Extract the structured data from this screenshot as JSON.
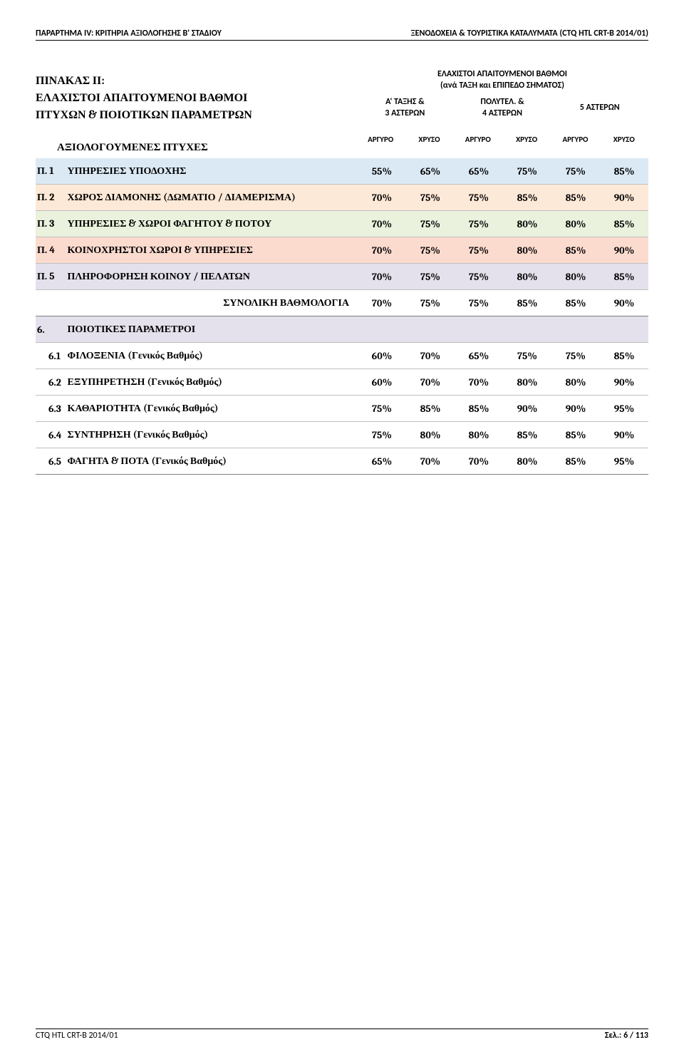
{
  "header": {
    "left": "ΠΑΡΑΡΤΗΜΑ IV: ΚΡΙΤΗΡΙΑ ΑΞΙΟΛΟΓΗΣΗΣ Β' ΣΤΑΔΙΟΥ",
    "right": "ΞΕΝΟΔΟΧΕΙΑ & ΤΟΥΡΙΣΤΙΚΑ ΚΑΤΑΛΥΜΑΤΑ (CTQ HTL CRT-B 2014/01)"
  },
  "title": {
    "line1": "ΠΙΝΑΚΑΣ ΙΙ:",
    "line2": "ΕΛΑΧΙΣΤΟΙ ΑΠΑΙΤΟΥΜΕΝΟΙ ΒΑΘΜΟΙ",
    "line3": "ΠΤΥΧΩΝ & ΠΟΙΟΤΙΚΩΝ ΠΑΡΑΜΕΤΡΩΝ",
    "banner_line1": "ΕΛΑΧΙΣΤΟΙ ΑΠΑΙΤΟΥΜΕΝΟΙ ΒΑΘΜΟΙ",
    "banner_line2": "(ανά ΤΑΞΗ και ΕΠΙΠΕΔΟ ΣΗΜΑΤΟΣ)"
  },
  "categories": {
    "cat1_line1": "Α' ΤΑΞΗΣ &",
    "cat1_line2": "3 ΑΣΤΕΡΩΝ",
    "cat2_line1": "ΠΟΛΥΤΕΛ. &",
    "cat2_line2": "4 ΑΣΤΕΡΩΝ",
    "cat3_line1": "5 ΑΣΤΕΡΩΝ",
    "sub1": "ΑΡΓΥΡΟ",
    "sub2": "ΧΡΥΣΟ",
    "sub3": "ΑΡΓΥΡΟ",
    "sub4": "ΧΡΥΣΟ",
    "sub5": "ΑΡΓΥΡΟ",
    "sub6": "ΧΡΥΣΟ"
  },
  "section_label": "ΑΞΙΟΛΟΓΟΥΜΕΝΕΣ  ΠΤΥΧΕΣ",
  "rows": [
    {
      "code": "Π. 1",
      "label": "ΥΠΗΡΕΣΙΕΣ ΥΠΟΔΟΧΗΣ",
      "bg": "#dbe9f4",
      "v": [
        "55%",
        "65%",
        "65%",
        "75%",
        "75%",
        "85%"
      ]
    },
    {
      "code": "Π. 2",
      "label": "ΧΩΡΟΣ ΔΙΑΜΟΝΗΣ (ΔΩΜΑΤΙΟ / ΔΙΑΜΕΡΙΣΜΑ)",
      "bg": "#fde9d8",
      "v": [
        "70%",
        "75%",
        "75%",
        "85%",
        "85%",
        "90%"
      ]
    },
    {
      "code": "Π. 3",
      "label": "ΥΠΗΡΕΣΙΕΣ & ΧΩΡΟΙ ΦΑΓΗΤΟΥ & ΠΟΤΟΥ",
      "bg": "#eaf1dc",
      "v": [
        "70%",
        "75%",
        "75%",
        "80%",
        "80%",
        "85%"
      ]
    },
    {
      "code": "Π. 4",
      "label": "ΚΟΙΝΟΧΡΗΣΤΟΙ ΧΩΡΟΙ & ΥΠΗΡΕΣΙΕΣ",
      "bg": "#fcdbcf",
      "v": [
        "70%",
        "75%",
        "75%",
        "80%",
        "85%",
        "90%"
      ]
    },
    {
      "code": "Π. 5",
      "label": "ΠΛΗΡΟΦΟΡΗΣΗ ΚΟΙΝΟΥ / ΠΕΛΑΤΩΝ",
      "bg": "#e4e1ec",
      "v": [
        "70%",
        "75%",
        "75%",
        "80%",
        "80%",
        "85%"
      ]
    }
  ],
  "synolik": {
    "label": "ΣΥΝΟΛΙΚΗ ΒΑΘΜΟΛΟΓΙΑ",
    "v": [
      "70%",
      "75%",
      "75%",
      "85%",
      "85%",
      "90%"
    ]
  },
  "quality_header": {
    "code": "6.",
    "label": "ΠΟΙΟΤΙΚΕΣ ΠΑΡΑΜΕΤΡΟΙ",
    "bg": "#e4e1ec"
  },
  "quality_rows": [
    {
      "code": "6.1",
      "label": "ΦΙΛΟΞΕΝΙΑ (Γενικός Βαθμός)",
      "v": [
        "60%",
        "70%",
        "65%",
        "75%",
        "75%",
        "85%"
      ]
    },
    {
      "code": "6.2",
      "label": "ΕΞΥΠΗΡΕΤΗΣΗ (Γενικός Βαθμός)",
      "v": [
        "60%",
        "70%",
        "70%",
        "80%",
        "80%",
        "90%"
      ]
    },
    {
      "code": "6.3",
      "label": "ΚΑΘΑΡΙΟΤΗΤΑ (Γενικός Βαθμός)",
      "v": [
        "75%",
        "85%",
        "85%",
        "90%",
        "90%",
        "95%"
      ]
    },
    {
      "code": "6.4",
      "label": "ΣΥΝΤΗΡΗΣΗ (Γενικός Βαθμός)",
      "v": [
        "75%",
        "80%",
        "80%",
        "85%",
        "85%",
        "90%"
      ]
    },
    {
      "code": "6.5",
      "label": "ΦΑΓΗΤΑ & ΠΟΤΑ (Γενικός Βαθμός)",
      "v": [
        "65%",
        "70%",
        "70%",
        "80%",
        "85%",
        "95%"
      ]
    }
  ],
  "footer": {
    "left": "CTQ HTL CRT-B 2014/01",
    "right": "Σελ.:  6 / 113"
  }
}
